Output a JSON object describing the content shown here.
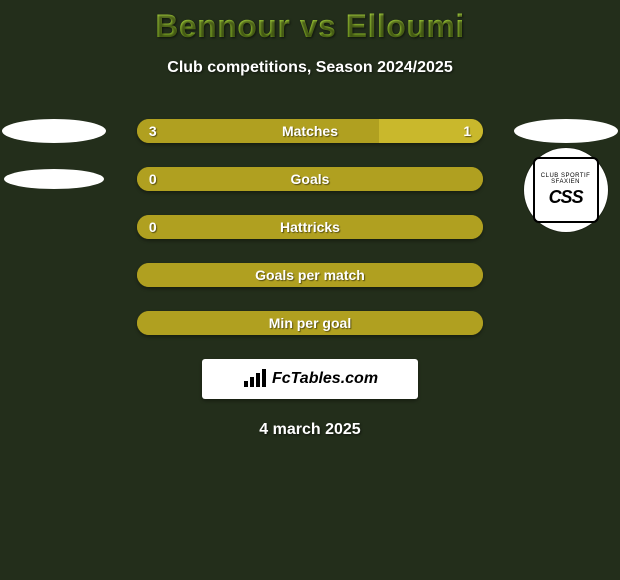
{
  "colors": {
    "page_bg": "#232e1b",
    "title_gradient_top": "#b9e34a",
    "title_gradient_bottom": "#7fae1f",
    "subtitle_color": "#ffffff",
    "bar_track": "#9a8c1f",
    "bar_left": "#b0a020",
    "bar_right": "#c9b82c",
    "bar_text": "#ffffff",
    "footer_text": "#ffffff"
  },
  "title": "Bennour vs Elloumi",
  "subtitle": "Club competitions, Season 2024/2025",
  "stats": [
    {
      "label": "Matches",
      "left_val": "3",
      "right_val": "1",
      "left_pct": 70,
      "right_pct": 30
    },
    {
      "label": "Goals",
      "left_val": "0",
      "right_val": "",
      "left_pct": 100,
      "right_pct": 0
    },
    {
      "label": "Hattricks",
      "left_val": "0",
      "right_val": "",
      "left_pct": 100,
      "right_pct": 0
    },
    {
      "label": "Goals per match",
      "left_val": "",
      "right_val": "",
      "left_pct": 100,
      "right_pct": 0
    },
    {
      "label": "Min per goal",
      "left_val": "",
      "right_val": "",
      "left_pct": 100,
      "right_pct": 0
    }
  ],
  "footer_brand": "FcTables.com",
  "footer_date": "4 march 2025",
  "club_right": {
    "abbrev": "CSS",
    "arc_text": "CLUB SPORTIF SFAXIEN"
  }
}
